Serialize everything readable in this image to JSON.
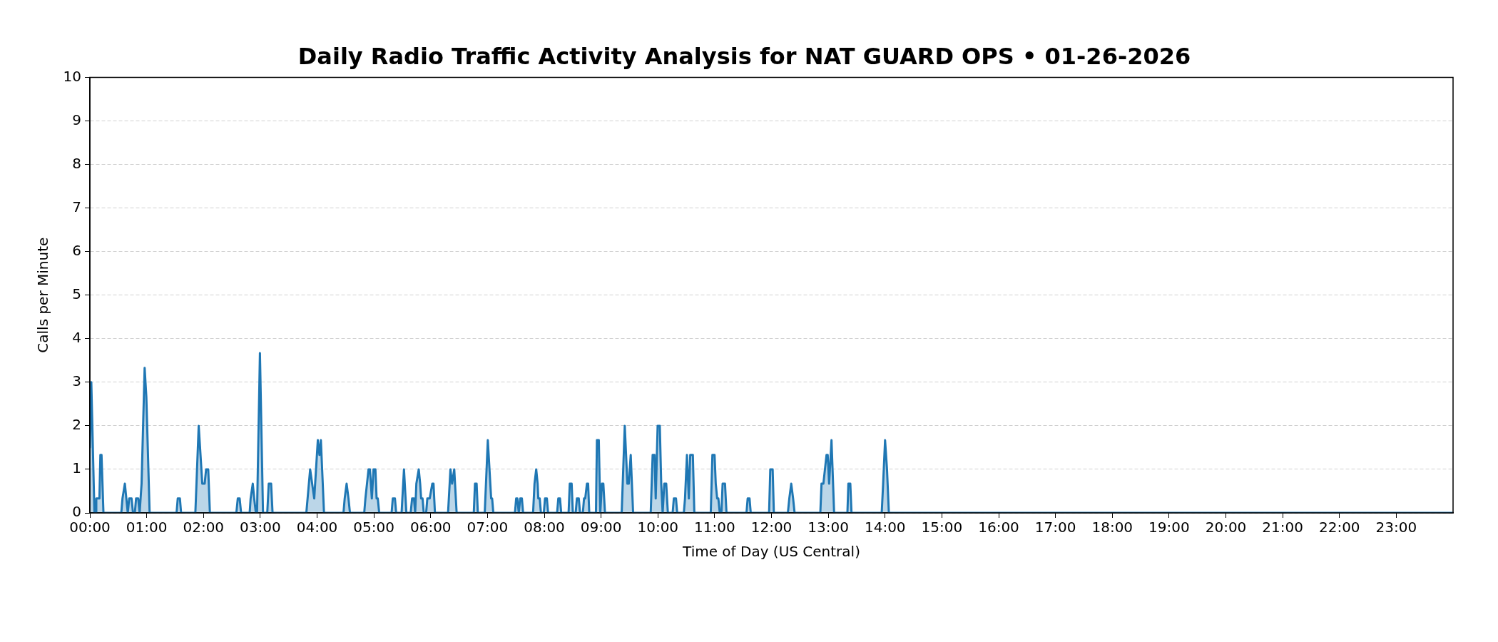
{
  "chart_data": {
    "type": "area",
    "title": "Daily Radio Traffic Activity Analysis for NAT GUARD OPS • 01-26-2026",
    "xlabel": "Time of Day (US Central)",
    "ylabel": "Calls per Minute",
    "color": "#1f77b4",
    "x": [
      0,
      0.025,
      0.08,
      0.101,
      0.113,
      0.168,
      0.185,
      0.205,
      0.239,
      0.553,
      0.574,
      0.616,
      0.642,
      0.667,
      0.692,
      0.734,
      0.759,
      0.792,
      0.813,
      0.851,
      0.876,
      0.91,
      0.964,
      0.994,
      1.052,
      1.526,
      1.547,
      1.585,
      1.606,
      1.857,
      1.916,
      1.979,
      2.021,
      2.046,
      2.084,
      2.113,
      2.579,
      2.604,
      2.637,
      2.662,
      2.813,
      2.83,
      2.868,
      2.893,
      2.922,
      2.943,
      2.994,
      3.048,
      3.123,
      3.149,
      3.191,
      3.216,
      3.811,
      3.878,
      3.95,
      4.013,
      4.042,
      4.067,
      4.122,
      4.465,
      4.486,
      4.52,
      4.553,
      4.579,
      4.83,
      4.851,
      4.906,
      4.931,
      4.964,
      4.994,
      5.027,
      5.048,
      5.069,
      5.094,
      5.312,
      5.333,
      5.371,
      5.392,
      5.488,
      5.53,
      5.572,
      5.648,
      5.673,
      5.706,
      5.727,
      5.748,
      5.79,
      5.815,
      5.832,
      5.857,
      5.878,
      5.92,
      5.941,
      5.983,
      6.029,
      6.05,
      6.075,
      6.306,
      6.348,
      6.377,
      6.415,
      6.457,
      6.759,
      6.78,
      6.809,
      6.83,
      6.952,
      7.006,
      7.065,
      7.082,
      7.103,
      7.484,
      7.505,
      7.526,
      7.551,
      7.577,
      7.606,
      7.627,
      7.803,
      7.828,
      7.858,
      7.883,
      7.895,
      7.92,
      7.941,
      7.992,
      8.013,
      8.046,
      8.067,
      8.226,
      8.247,
      8.277,
      8.298,
      8.428,
      8.449,
      8.482,
      8.503,
      8.553,
      8.574,
      8.608,
      8.629,
      8.679,
      8.7,
      8.721,
      8.751,
      8.772,
      8.792,
      8.91,
      8.927,
      8.96,
      8.986,
      9.015,
      9.04,
      9.069,
      9.363,
      9.417,
      9.463,
      9.488,
      9.522,
      9.564,
      9.874,
      9.908,
      9.941,
      9.962,
      9.996,
      10.034,
      10.059,
      10.084,
      10.113,
      10.147,
      10.176,
      10.26,
      10.281,
      10.319,
      10.34,
      10.457,
      10.478,
      10.512,
      10.545,
      10.57,
      10.616,
      10.642,
      10.931,
      10.96,
      10.998,
      11.019,
      11.044,
      11.065,
      11.09,
      11.119,
      11.14,
      11.182,
      11.208,
      11.56,
      11.581,
      11.614,
      11.635,
      11.958,
      11.979,
      12.021,
      12.042,
      12.289,
      12.314,
      12.348,
      12.381,
      12.407,
      12.86,
      12.881,
      12.914,
      12.969,
      12.99,
      13.015,
      13.057,
      13.103,
      13.337,
      13.354,
      13.388,
      13.409,
      13.941,
      13.966,
      14,
      14.034,
      14.067,
      23.983
    ],
    "values": [
      1.5,
      3,
      0,
      0,
      0.33,
      0.33,
      1.33,
      1.33,
      0,
      0,
      0.33,
      0.67,
      0.33,
      0,
      0.33,
      0.33,
      0,
      0,
      0.33,
      0.33,
      0,
      0.67,
      3.33,
      2.67,
      0,
      0,
      0.33,
      0.33,
      0,
      0,
      2,
      0.67,
      0.67,
      1,
      1,
      0,
      0,
      0.33,
      0.33,
      0,
      0,
      0.33,
      0.67,
      0.33,
      0,
      0,
      3.67,
      0,
      0,
      0.67,
      0.67,
      0,
      0,
      1,
      0.33,
      1.67,
      1.33,
      1.67,
      0,
      0,
      0.33,
      0.67,
      0.33,
      0,
      0,
      0.33,
      1,
      1,
      0.33,
      1,
      1,
      0.33,
      0.33,
      0,
      0,
      0.33,
      0.33,
      0,
      0,
      1,
      0,
      0,
      0.33,
      0.33,
      0,
      0.67,
      1,
      0.67,
      0.33,
      0.33,
      0,
      0,
      0.33,
      0.33,
      0.67,
      0.67,
      0,
      0,
      1,
      0.67,
      1,
      0,
      0,
      0.67,
      0.67,
      0,
      0,
      1.67,
      0.33,
      0.33,
      0,
      0,
      0.33,
      0.33,
      0,
      0.33,
      0.33,
      0,
      0,
      0.67,
      1,
      0.67,
      0.33,
      0.33,
      0,
      0,
      0.33,
      0.33,
      0,
      0,
      0.33,
      0.33,
      0,
      0,
      0.67,
      0.67,
      0,
      0,
      0.33,
      0.33,
      0,
      0,
      0.33,
      0.33,
      0.67,
      0.67,
      0,
      0,
      1.67,
      1.67,
      0,
      0.67,
      0.67,
      0,
      0,
      2,
      0.67,
      0.67,
      1.33,
      0,
      0,
      1.33,
      1.33,
      0.33,
      2,
      2,
      0.67,
      0,
      0.67,
      0.67,
      0,
      0,
      0.33,
      0.33,
      0,
      0,
      0.33,
      1.33,
      0.33,
      1.33,
      1.33,
      0,
      0,
      1.33,
      1.33,
      0.67,
      0.33,
      0.33,
      0,
      0,
      0.67,
      0.67,
      0,
      0,
      0.33,
      0.33,
      0,
      0,
      1,
      1,
      0,
      0,
      0.33,
      0.67,
      0.33,
      0,
      0,
      0.67,
      0.67,
      1.33,
      1.33,
      0.67,
      1.67,
      0,
      0,
      0.67,
      0.67,
      0,
      0,
      0.67,
      1.67,
      1,
      0,
      0
    ],
    "xlim": [
      0,
      24
    ],
    "xticks": [
      {
        "value": 0,
        "label": "00:00"
      },
      {
        "value": 1,
        "label": "01:00"
      },
      {
        "value": 2,
        "label": "02:00"
      },
      {
        "value": 3,
        "label": "03:00"
      },
      {
        "value": 4,
        "label": "04:00"
      },
      {
        "value": 5,
        "label": "05:00"
      },
      {
        "value": 6,
        "label": "06:00"
      },
      {
        "value": 7,
        "label": "07:00"
      },
      {
        "value": 8,
        "label": "08:00"
      },
      {
        "value": 9,
        "label": "09:00"
      },
      {
        "value": 10,
        "label": "10:00"
      },
      {
        "value": 11,
        "label": "11:00"
      },
      {
        "value": 12,
        "label": "12:00"
      },
      {
        "value": 13,
        "label": "13:00"
      },
      {
        "value": 14,
        "label": "14:00"
      },
      {
        "value": 15,
        "label": "15:00"
      },
      {
        "value": 16,
        "label": "16:00"
      },
      {
        "value": 17,
        "label": "17:00"
      },
      {
        "value": 18,
        "label": "18:00"
      },
      {
        "value": 19,
        "label": "19:00"
      },
      {
        "value": 20,
        "label": "20:00"
      },
      {
        "value": 21,
        "label": "21:00"
      },
      {
        "value": 22,
        "label": "22:00"
      },
      {
        "value": 23,
        "label": "23:00"
      }
    ],
    "ylim": [
      0,
      10
    ],
    "yticks": [
      0,
      1,
      2,
      3,
      4,
      5,
      6,
      7,
      8,
      9,
      10
    ],
    "grid": "y"
  }
}
